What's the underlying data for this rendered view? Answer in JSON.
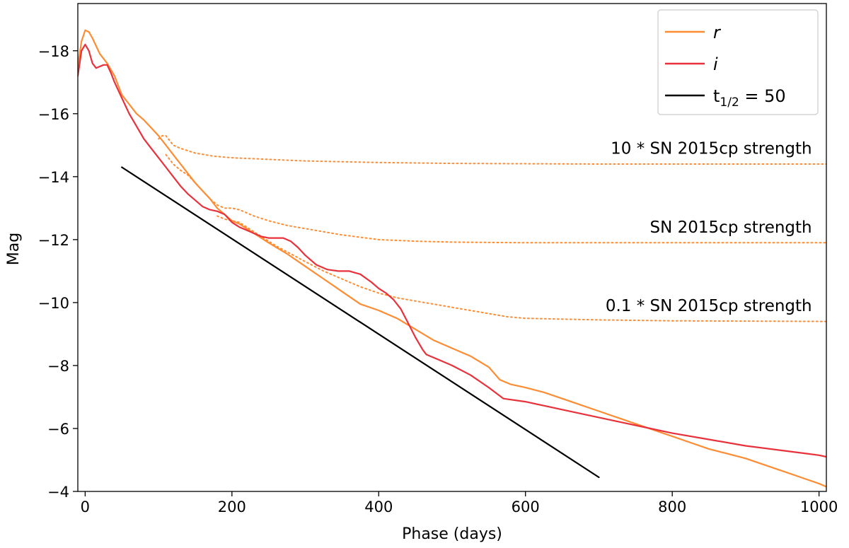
{
  "chart_data": {
    "type": "line",
    "title": "",
    "xlabel": "Phase (days)",
    "ylabel": "Mag",
    "xlim": [
      -10,
      1010
    ],
    "ylim": [
      -19.5,
      -4
    ],
    "y_inverted": true,
    "grid": false,
    "legend_position": "top-right",
    "xticks": [
      0,
      200,
      400,
      600,
      800,
      1000
    ],
    "yticks": [
      -18,
      -16,
      -14,
      -12,
      -10,
      -8,
      -6,
      -4
    ],
    "xtick_labels": [
      "0",
      "200",
      "400",
      "600",
      "800",
      "1000"
    ],
    "ytick_labels": [
      "−18",
      "−16",
      "−14",
      "−12",
      "−10",
      "−8",
      "−6",
      "−4"
    ],
    "series": [
      {
        "name": "r",
        "color": "#ff8c33",
        "style": "solid",
        "x": [
          -10,
          -5,
          0,
          5,
          10,
          20,
          30,
          40,
          50,
          60,
          70,
          80,
          90,
          100,
          110,
          120,
          130,
          140,
          150,
          160,
          170,
          180,
          190,
          200,
          210,
          220,
          230,
          250,
          275,
          300,
          325,
          350,
          375,
          400,
          425,
          450,
          475,
          500,
          525,
          550,
          565,
          580,
          600,
          625,
          650,
          675,
          700,
          725,
          750,
          775,
          800,
          825,
          850,
          875,
          900,
          925,
          950,
          975,
          1000,
          1010
        ],
        "y": [
          -17.5,
          -18.3,
          -18.65,
          -18.6,
          -18.4,
          -17.9,
          -17.6,
          -17.2,
          -16.6,
          -16.3,
          -16.0,
          -15.8,
          -15.55,
          -15.3,
          -15.0,
          -14.7,
          -14.4,
          -14.1,
          -13.8,
          -13.55,
          -13.3,
          -13.0,
          -12.8,
          -12.6,
          -12.5,
          -12.35,
          -12.2,
          -11.9,
          -11.55,
          -11.15,
          -10.75,
          -10.35,
          -9.95,
          -9.75,
          -9.5,
          -9.15,
          -8.8,
          -8.55,
          -8.3,
          -7.95,
          -7.55,
          -7.4,
          -7.3,
          -7.15,
          -6.95,
          -6.75,
          -6.55,
          -6.35,
          -6.15,
          -5.95,
          -5.75,
          -5.55,
          -5.35,
          -5.2,
          -5.05,
          -4.85,
          -4.65,
          -4.45,
          -4.25,
          -4.15
        ]
      },
      {
        "name": "i",
        "color": "#e8313b",
        "style": "solid",
        "x": [
          -10,
          -5,
          0,
          5,
          10,
          15,
          20,
          25,
          30,
          35,
          40,
          50,
          60,
          70,
          80,
          90,
          100,
          110,
          120,
          130,
          140,
          150,
          160,
          170,
          180,
          190,
          200,
          210,
          220,
          230,
          240,
          250,
          260,
          270,
          280,
          290,
          300,
          315,
          330,
          345,
          360,
          375,
          390,
          400,
          410,
          420,
          430,
          440,
          450,
          460,
          465,
          470,
          480,
          500,
          525,
          550,
          570,
          600,
          650,
          700,
          750,
          800,
          850,
          900,
          950,
          1000,
          1010
        ],
        "y": [
          -17.2,
          -18.0,
          -18.2,
          -18.0,
          -17.6,
          -17.45,
          -17.5,
          -17.55,
          -17.55,
          -17.3,
          -17.0,
          -16.5,
          -16.0,
          -15.6,
          -15.2,
          -14.9,
          -14.6,
          -14.3,
          -14.0,
          -13.7,
          -13.45,
          -13.25,
          -13.05,
          -12.95,
          -12.9,
          -12.8,
          -12.55,
          -12.4,
          -12.3,
          -12.2,
          -12.1,
          -12.05,
          -12.05,
          -12.05,
          -11.95,
          -11.75,
          -11.5,
          -11.2,
          -11.05,
          -11.0,
          -11.0,
          -10.9,
          -10.65,
          -10.45,
          -10.3,
          -10.1,
          -9.8,
          -9.35,
          -8.9,
          -8.5,
          -8.35,
          -8.3,
          -8.2,
          -8.0,
          -7.7,
          -7.3,
          -6.95,
          -6.85,
          -6.6,
          -6.35,
          -6.1,
          -5.85,
          -5.65,
          -5.45,
          -5.3,
          -5.15,
          -5.1
        ]
      },
      {
        "name": "t_{1/2} = 50",
        "color": "#000000",
        "style": "solid",
        "x": [
          50,
          700
        ],
        "y": [
          -14.3,
          -4.45
        ]
      },
      {
        "name": "",
        "color": "#ff8c33",
        "style": "dotted",
        "x": [
          100,
          105,
          110,
          115,
          120,
          130,
          150,
          175,
          200,
          250,
          300,
          400,
          500,
          700,
          1010
        ],
        "y": [
          -15.2,
          -15.3,
          -15.3,
          -15.15,
          -15.0,
          -14.9,
          -14.75,
          -14.65,
          -14.6,
          -14.55,
          -14.5,
          -14.45,
          -14.42,
          -14.4,
          -14.4
        ]
      },
      {
        "name": "",
        "color": "#ff8c33",
        "style": "dotted",
        "x": [
          110,
          120,
          130,
          140,
          150,
          160,
          170,
          180,
          190,
          200,
          210,
          220,
          230,
          250,
          275,
          300,
          350,
          400,
          450,
          500,
          600,
          800,
          1010
        ],
        "y": [
          -14.7,
          -14.4,
          -14.2,
          -14.05,
          -13.8,
          -13.55,
          -13.3,
          -13.1,
          -13.0,
          -13.0,
          -12.95,
          -12.85,
          -12.75,
          -12.6,
          -12.45,
          -12.35,
          -12.15,
          -12.0,
          -11.95,
          -11.92,
          -11.9,
          -11.9,
          -11.9
        ]
      },
      {
        "name": "",
        "color": "#ff8c33",
        "style": "dotted",
        "x": [
          180,
          190,
          200,
          210,
          220,
          240,
          260,
          280,
          300,
          325,
          350,
          375,
          400,
          425,
          450,
          475,
          500,
          525,
          550,
          575,
          600,
          700,
          800,
          1010
        ],
        "y": [
          -12.75,
          -12.65,
          -12.6,
          -12.55,
          -12.4,
          -12.1,
          -11.8,
          -11.55,
          -11.3,
          -11.0,
          -10.75,
          -10.5,
          -10.3,
          -10.15,
          -10.05,
          -9.95,
          -9.85,
          -9.75,
          -9.65,
          -9.55,
          -9.5,
          -9.45,
          -9.42,
          -9.4
        ]
      }
    ],
    "annotations": [
      {
        "text": "10 * SN 2015cp strength",
        "x": 1000,
        "y": -14.5
      },
      {
        "text": "SN 2015cp strength",
        "x": 1000,
        "y": -12.0
      },
      {
        "text": "0.1 * SN 2015cp strength",
        "x": 1000,
        "y": -9.5
      }
    ],
    "legend": [
      {
        "label": "r",
        "color": "#ff8c33",
        "italic": true
      },
      {
        "label": "i",
        "color": "#e8313b",
        "italic": true
      },
      {
        "label": "t1/2 = 50",
        "color": "#000000",
        "italic": false,
        "main": "t",
        "sub": "1/2",
        "rest": " = 50"
      }
    ]
  }
}
